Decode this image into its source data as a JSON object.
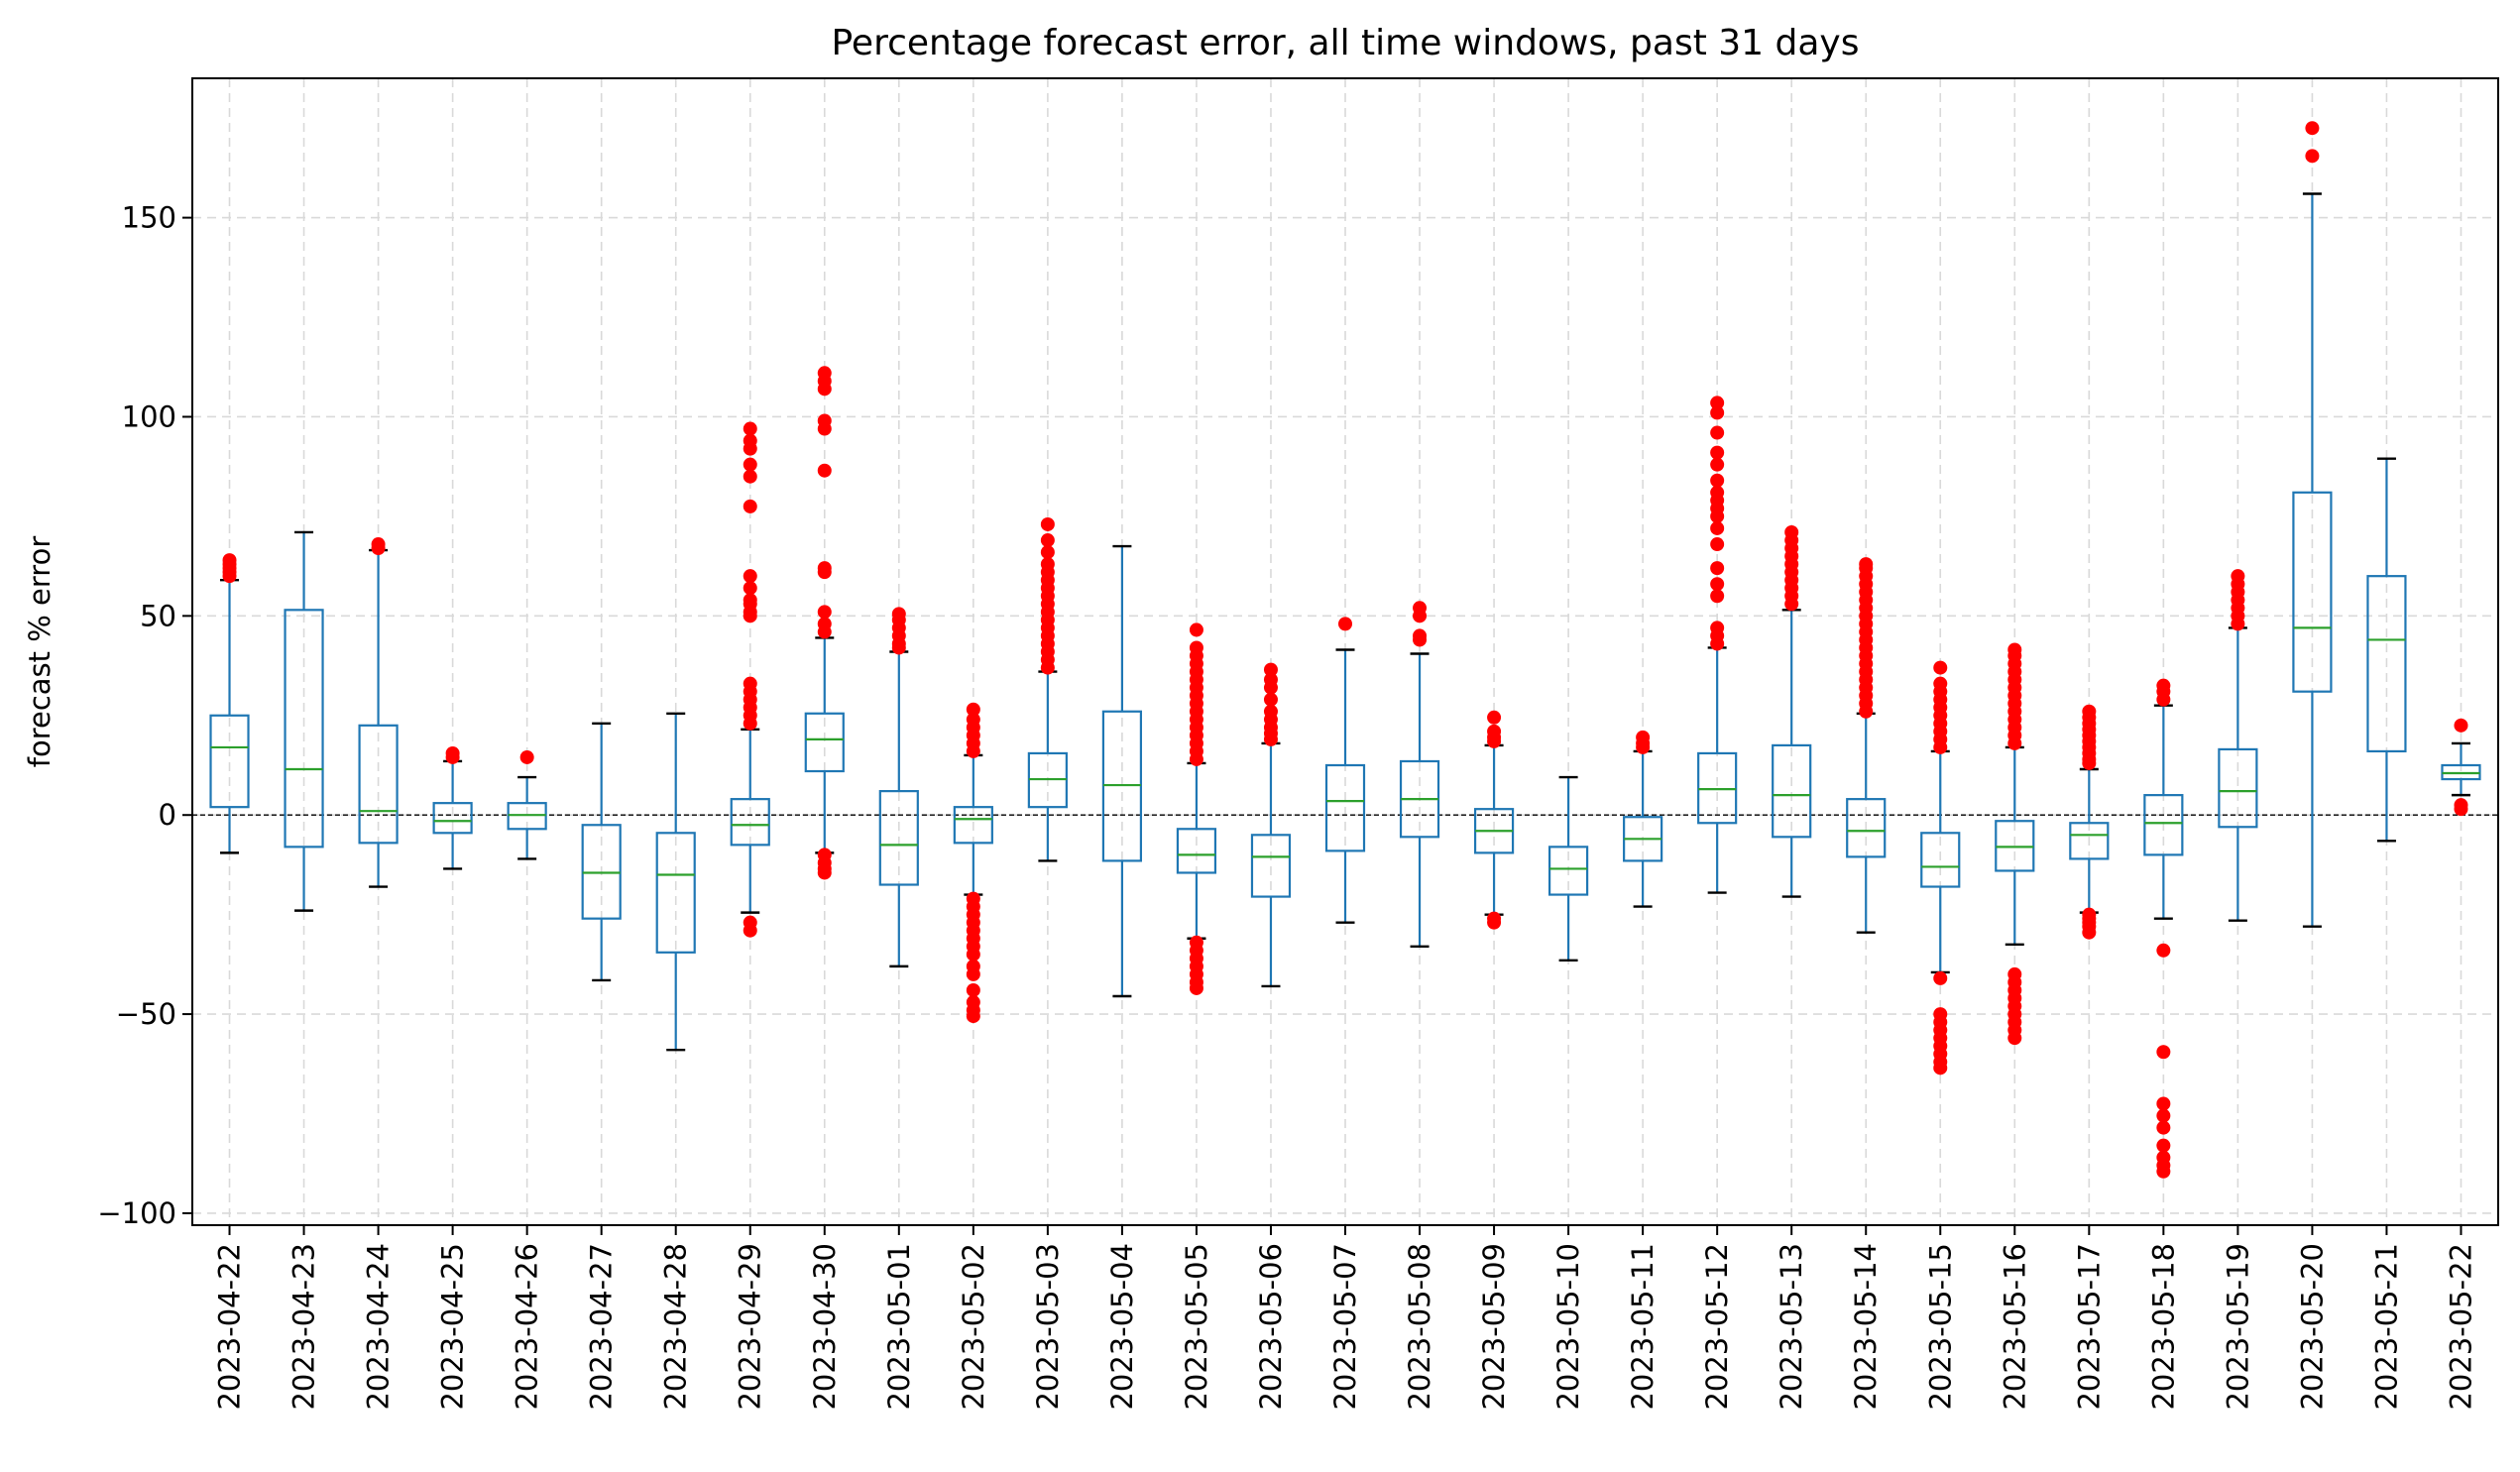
{
  "chart_data": {
    "type": "box",
    "title": "Percentage forecast error, all time windows, past 31 days",
    "xlabel": "",
    "ylabel": "forecast % error",
    "ylim": [
      -103,
      185
    ],
    "yticks": [
      -100,
      -50,
      0,
      50,
      100,
      150
    ],
    "ytick_labels": [
      "−100",
      "−50",
      "0",
      "50",
      "100",
      "150"
    ],
    "grid": true,
    "reference_line": 0,
    "colors": {
      "box": "#1f77b4",
      "median": "#2ca02c",
      "outlier": "#ff0000",
      "grid": "#d9d9d9",
      "reference": "#000000"
    },
    "categories": [
      "2023-04-22",
      "2023-04-23",
      "2023-04-24",
      "2023-04-25",
      "2023-04-26",
      "2023-04-27",
      "2023-04-28",
      "2023-04-29",
      "2023-04-30",
      "2023-05-01",
      "2023-05-02",
      "2023-05-03",
      "2023-05-04",
      "2023-05-05",
      "2023-05-06",
      "2023-05-07",
      "2023-05-08",
      "2023-05-09",
      "2023-05-10",
      "2023-05-11",
      "2023-05-12",
      "2023-05-13",
      "2023-05-14",
      "2023-05-15",
      "2023-05-16",
      "2023-05-17",
      "2023-05-18",
      "2023-05-19",
      "2023-05-20",
      "2023-05-21",
      "2023-05-22"
    ],
    "boxes": [
      {
        "wl": -9.5,
        "q1": 2,
        "med": 17,
        "q3": 25,
        "wh": 59,
        "fl": [
          60,
          61,
          62,
          63,
          64
        ]
      },
      {
        "wl": -24,
        "q1": -8,
        "med": 11.5,
        "q3": 51.5,
        "wh": 71,
        "fl": []
      },
      {
        "wl": -18,
        "q1": -7,
        "med": 1,
        "q3": 22.5,
        "wh": 66.5,
        "fl": [
          67,
          68
        ]
      },
      {
        "wl": -13.5,
        "q1": -4.5,
        "med": -1.5,
        "q3": 3,
        "wh": 13.5,
        "fl": [
          14.5,
          15.5
        ]
      },
      {
        "wl": -11,
        "q1": -3.5,
        "med": 0,
        "q3": 3,
        "wh": 9.5,
        "fl": [
          14.5
        ]
      },
      {
        "wl": -41.5,
        "q1": -26,
        "med": -14.5,
        "q3": -2.5,
        "wh": 23,
        "fl": []
      },
      {
        "wl": -59,
        "q1": -34.5,
        "med": -15,
        "q3": -4.5,
        "wh": 25.5,
        "fl": []
      },
      {
        "wl": -24.5,
        "q1": -7.5,
        "med": -2.5,
        "q3": 4,
        "wh": 21.5,
        "fl": [
          -27,
          -29,
          23,
          25,
          27,
          29,
          31,
          33,
          50,
          51,
          53,
          54,
          57,
          60,
          77.5,
          85,
          88,
          92,
          94,
          97
        ]
      },
      {
        "wl": -9.5,
        "q1": 11,
        "med": 19,
        "q3": 25.5,
        "wh": 44.5,
        "fl": [
          -10,
          -12,
          -13.5,
          -14.5,
          46,
          48,
          51,
          61,
          62,
          86.5,
          97,
          99,
          107,
          109,
          111
        ]
      },
      {
        "wl": -38,
        "q1": -17.5,
        "med": -7.5,
        "q3": 6,
        "wh": 41,
        "fl": [
          42,
          43,
          45,
          47,
          49,
          50.5
        ]
      },
      {
        "wl": -20,
        "q1": -7,
        "med": -1,
        "q3": 2,
        "wh": 15,
        "fl": [
          -21,
          -23,
          -25,
          -27,
          -29,
          -31,
          -33,
          -35,
          -38,
          -40,
          -44,
          -47,
          -49,
          -50.5,
          16,
          18,
          20,
          22,
          24,
          26.5
        ]
      },
      {
        "wl": -11.5,
        "q1": 2,
        "med": 9,
        "q3": 15.5,
        "wh": 36,
        "fl": [
          37,
          39,
          41,
          43,
          45,
          47,
          49,
          51,
          53,
          55,
          57,
          59,
          61,
          63,
          66,
          69,
          73
        ]
      },
      {
        "wl": -45.5,
        "q1": -11.5,
        "med": 7.5,
        "q3": 26,
        "wh": 67.5,
        "fl": []
      },
      {
        "wl": -31,
        "q1": -14.5,
        "med": -10,
        "q3": -3.5,
        "wh": 13,
        "fl": [
          -32,
          -34,
          -36,
          -38,
          -40,
          -42,
          -43.5,
          14,
          16,
          18,
          20,
          22,
          24,
          26,
          28,
          30,
          32,
          34,
          36,
          38,
          40,
          42,
          46.5
        ]
      },
      {
        "wl": -43,
        "q1": -20.5,
        "med": -10.5,
        "q3": -5,
        "wh": 18,
        "fl": [
          19,
          20.5,
          22,
          24,
          26,
          29,
          32,
          34,
          36.5
        ]
      },
      {
        "wl": -27,
        "q1": -9,
        "med": 3.5,
        "q3": 12.5,
        "wh": 41.5,
        "fl": [
          48
        ]
      },
      {
        "wl": -33,
        "q1": -5.5,
        "med": 4,
        "q3": 13.5,
        "wh": 40.5,
        "fl": [
          44,
          45,
          50,
          52
        ]
      },
      {
        "wl": -25,
        "q1": -9.5,
        "med": -4,
        "q3": 1.5,
        "wh": 17.5,
        "fl": [
          -26,
          -27,
          18.5,
          19.5,
          21,
          24.5
        ]
      },
      {
        "wl": -36.5,
        "q1": -20,
        "med": -13.5,
        "q3": -8,
        "wh": 9.5,
        "fl": []
      },
      {
        "wl": -23,
        "q1": -11.5,
        "med": -6,
        "q3": -0.5,
        "wh": 16,
        "fl": [
          17,
          18,
          19.5
        ]
      },
      {
        "wl": -19.5,
        "q1": -2,
        "med": 6.5,
        "q3": 15.5,
        "wh": 42,
        "fl": [
          43,
          45,
          47,
          55,
          58,
          62,
          68,
          72,
          75,
          77,
          79,
          81,
          84,
          88,
          91,
          96,
          101,
          103.5
        ]
      },
      {
        "wl": -20.5,
        "q1": -5.5,
        "med": 5,
        "q3": 17.5,
        "wh": 51.5,
        "fl": [
          53,
          55,
          57,
          59,
          61,
          63,
          65,
          67,
          69,
          71
        ]
      },
      {
        "wl": -29.5,
        "q1": -10.5,
        "med": -4,
        "q3": 4,
        "wh": 25.5,
        "fl": [
          26,
          28,
          30,
          32,
          34,
          36,
          38,
          40,
          42,
          44,
          46,
          48,
          50,
          52,
          54,
          56,
          58,
          60,
          62,
          63
        ]
      },
      {
        "wl": -39.5,
        "q1": -18,
        "med": -13,
        "q3": -4.5,
        "wh": 16,
        "fl": [
          -41,
          -50,
          -52,
          -54,
          -56,
          -58,
          -60,
          -62,
          -63.5,
          17,
          19,
          21,
          23,
          25,
          27,
          29,
          31,
          33,
          37
        ]
      },
      {
        "wl": -32.5,
        "q1": -14,
        "med": -8,
        "q3": -1.5,
        "wh": 17,
        "fl": [
          -40,
          -42,
          -44,
          -46,
          -48,
          -50,
          -52,
          -54,
          -56,
          18,
          20,
          22,
          24,
          26,
          28,
          30,
          32,
          34,
          36,
          38,
          40,
          41.5
        ]
      },
      {
        "wl": -24.5,
        "q1": -11,
        "med": -5,
        "q3": -2,
        "wh": 11.5,
        "fl": [
          -25,
          -26,
          -27,
          -28,
          -29.5,
          13,
          14,
          15.5,
          17,
          18.5,
          20,
          21.5,
          23,
          24.5,
          26
        ]
      },
      {
        "wl": -26,
        "q1": -10,
        "med": -2,
        "q3": 5,
        "wh": 27.5,
        "fl": [
          -34,
          -59.5,
          -72.5,
          -75.5,
          -78.5,
          -83,
          -86,
          -88,
          -89.5,
          29,
          31,
          32.5
        ]
      },
      {
        "wl": -26.5,
        "q1": -3,
        "med": 6,
        "q3": 16.5,
        "wh": 47,
        "fl": [
          48,
          50,
          52,
          54,
          56,
          58,
          60
        ]
      },
      {
        "wl": -28,
        "q1": 31,
        "med": 47,
        "q3": 81,
        "wh": 156,
        "fl": [
          165.5,
          172.5
        ]
      },
      {
        "wl": -6.5,
        "q1": 16,
        "med": 44,
        "q3": 60,
        "wh": 89.5,
        "fl": []
      },
      {
        "wl": 5,
        "q1": 9,
        "med": 10.5,
        "q3": 12.5,
        "wh": 18,
        "fl": [
          1.5,
          2.5,
          22.5
        ]
      }
    ]
  }
}
